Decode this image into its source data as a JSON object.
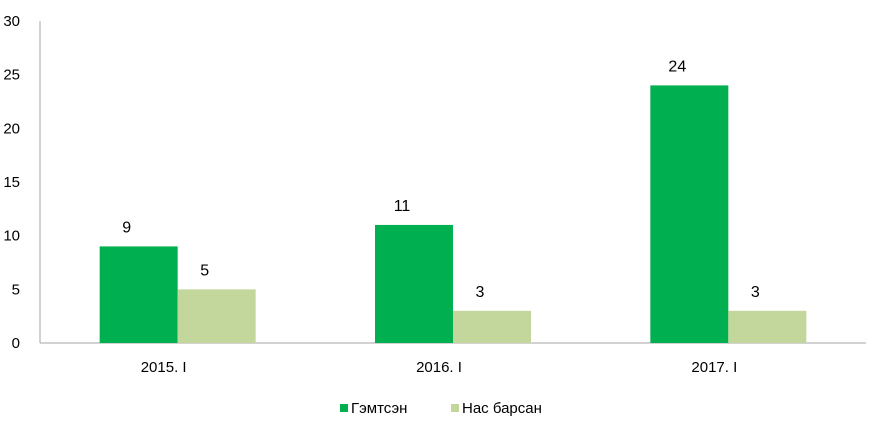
{
  "chart_data": {
    "type": "bar",
    "categories": [
      "2015. I",
      "2016. I",
      "2017. I"
    ],
    "series": [
      {
        "name": "Гэмтсэн",
        "values": [
          9,
          11,
          24
        ],
        "color": "#00b050"
      },
      {
        "name": "Нас барсан",
        "values": [
          5,
          3,
          3
        ],
        "color": "#c3d69b"
      }
    ],
    "ylim": [
      0,
      30
    ],
    "yticks": [
      0,
      5,
      10,
      15,
      20,
      25,
      30
    ],
    "grid": false,
    "legend": "bottom-center",
    "data_labels": true
  }
}
